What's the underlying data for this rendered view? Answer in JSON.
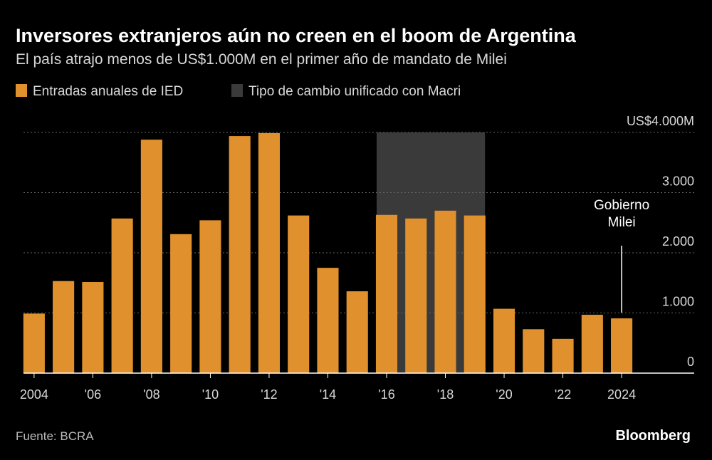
{
  "chart_data": {
    "type": "bar",
    "title": "Inversores extranjeros aún no creen en el boom de Argentina",
    "subtitle": "El país atrajo menos de US$1.000M en el primer año de mandato de Milei",
    "x": [
      2004,
      2005,
      2006,
      2007,
      2008,
      2009,
      2010,
      2011,
      2012,
      2013,
      2014,
      2015,
      2016,
      2017,
      2018,
      2019,
      2020,
      2021,
      2022,
      2023,
      2024
    ],
    "series": [
      {
        "name": "Entradas anuales de IED",
        "color": "#e0902d",
        "values": [
          990,
          1530,
          1515,
          2570,
          3880,
          2310,
          2540,
          3940,
          3990,
          2620,
          1750,
          1360,
          2630,
          2570,
          2700,
          2620,
          1070,
          730,
          570,
          970,
          910
        ]
      }
    ],
    "shade": {
      "name": "Tipo de cambio unificado con Macri",
      "color": "#3a3a3a",
      "xlim": [
        2015.66,
        2019.35
      ]
    },
    "xlim": [
      2003.64,
      2026.47
    ],
    "xticks": [
      {
        "value": 2004,
        "label": "2004"
      },
      {
        "value": 2006,
        "label": "'06"
      },
      {
        "value": 2008,
        "label": "'08"
      },
      {
        "value": 2010,
        "label": "'10"
      },
      {
        "value": 2012,
        "label": "'12"
      },
      {
        "value": 2014,
        "label": "'14"
      },
      {
        "value": 2016,
        "label": "'16"
      },
      {
        "value": 2018,
        "label": "'18"
      },
      {
        "value": 2020,
        "label": "'20"
      },
      {
        "value": 2022,
        "label": "'22"
      },
      {
        "value": 2024,
        "label": "2024"
      }
    ],
    "ylim": [
      0,
      4000
    ],
    "yticks": [
      0,
      {
        "value": 1000,
        "label": "1.000"
      },
      {
        "value": 2000,
        "label": "2.000"
      },
      {
        "value": 3000,
        "label": "3.000"
      },
      {
        "value": 4000,
        "label": "US$4.000M"
      }
    ],
    "grid": true,
    "annotation": {
      "text": [
        "Gobierno",
        "Milei"
      ],
      "x": 2024
    },
    "source": "Fuente: BCRA",
    "brand": "Bloomberg"
  }
}
